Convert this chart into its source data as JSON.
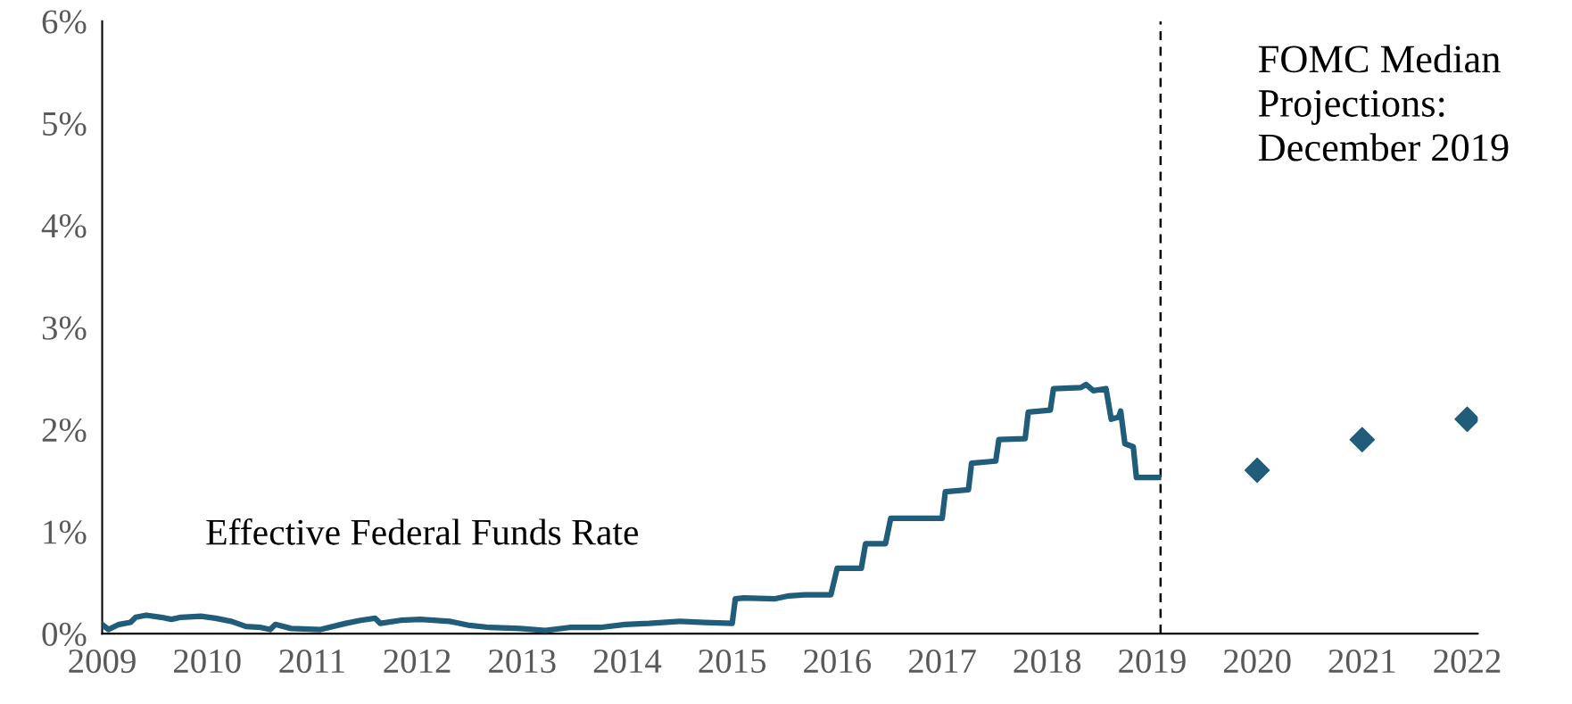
{
  "chart_data": {
    "type": "line",
    "xlim": [
      2009,
      2022.1
    ],
    "xticks": [
      2009,
      2010,
      2011,
      2012,
      2013,
      2014,
      2015,
      2016,
      2017,
      2018,
      2019,
      2020,
      2021,
      2022
    ],
    "ylim": [
      0,
      6
    ],
    "yticks": [
      {
        "value": 0,
        "label": "0%"
      },
      {
        "value": 1,
        "label": "1%"
      },
      {
        "value": 2,
        "label": "2%"
      },
      {
        "value": 3,
        "label": "3%"
      },
      {
        "value": 4,
        "label": "4%"
      },
      {
        "value": 5,
        "label": "5%"
      },
      {
        "value": 6,
        "label": "6%"
      }
    ],
    "grid": false,
    "legend": false,
    "annotations": [
      "FOMC Median Projections: December 2019"
    ],
    "ref_lines": [
      {
        "axis": "x",
        "value": 2019.08,
        "color": "#000000",
        "line_style": "dashed"
      }
    ],
    "series": [
      {
        "name": "Effective Federal Funds Rate",
        "color": "#1f5d7a",
        "marker": "none",
        "line_style": "solid",
        "x": [
          2009.0,
          2009.06,
          2009.16,
          2009.27,
          2009.32,
          2009.42,
          2009.56,
          2009.66,
          2009.75,
          2009.94,
          2010.08,
          2010.23,
          2010.37,
          2010.51,
          2010.6,
          2010.65,
          2010.8,
          2011.08,
          2011.32,
          2011.46,
          2011.6,
          2011.65,
          2011.84,
          2012.03,
          2012.31,
          2012.5,
          2012.69,
          2012.98,
          2013.22,
          2013.45,
          2013.74,
          2013.98,
          2014.21,
          2014.5,
          2014.74,
          2015.0,
          2015.03,
          2015.11,
          2015.4,
          2015.54,
          2015.69,
          2015.94,
          2016.0,
          2016.23,
          2016.27,
          2016.46,
          2016.51,
          2017.0,
          2017.03,
          2017.25,
          2017.28,
          2017.51,
          2017.54,
          2017.79,
          2017.82,
          2018.03,
          2018.06,
          2018.32,
          2018.37,
          2018.44,
          2018.56,
          2018.61,
          2018.68,
          2018.7,
          2018.74,
          2018.82,
          2018.85,
          2019.06
        ],
        "values": [
          0.09,
          0.04,
          0.09,
          0.11,
          0.16,
          0.18,
          0.16,
          0.14,
          0.16,
          0.17,
          0.15,
          0.12,
          0.07,
          0.06,
          0.04,
          0.09,
          0.05,
          0.04,
          0.1,
          0.13,
          0.15,
          0.1,
          0.13,
          0.14,
          0.12,
          0.08,
          0.06,
          0.05,
          0.03,
          0.06,
          0.06,
          0.09,
          0.1,
          0.12,
          0.11,
          0.1,
          0.34,
          0.35,
          0.34,
          0.37,
          0.38,
          0.38,
          0.64,
          0.64,
          0.88,
          0.88,
          1.13,
          1.13,
          1.39,
          1.41,
          1.67,
          1.69,
          1.9,
          1.91,
          2.17,
          2.19,
          2.4,
          2.41,
          2.44,
          2.38,
          2.4,
          2.1,
          2.12,
          2.18,
          1.86,
          1.83,
          1.53,
          1.53
        ]
      },
      {
        "type": "scatter",
        "color": "#1f5d7a",
        "marker": "diamond",
        "x": [
          2020,
          2021,
          2022
        ],
        "values": [
          1.6,
          1.9,
          2.1
        ]
      }
    ]
  }
}
